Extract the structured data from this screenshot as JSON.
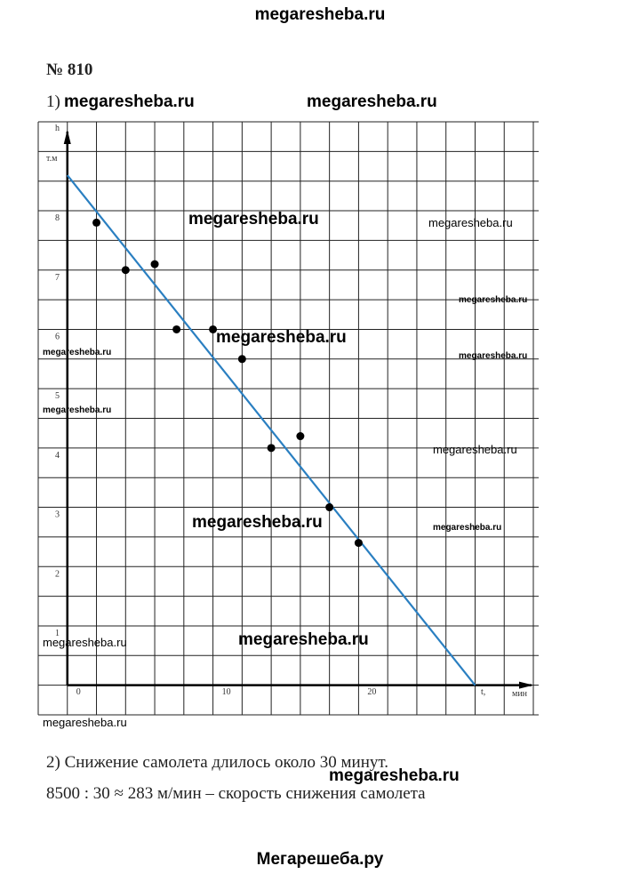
{
  "watermark": "megaresheba.ru",
  "header": {
    "problem": "№ 810",
    "part1": "1)"
  },
  "answer": [
    "2) Снижение самолета длилось около 30 минут.",
    "8500 : 30 ≈ 283 м/мин – скорость снижения самолета"
  ],
  "footer": "Мегарешеба.ру",
  "chart_data": {
    "type": "scatter",
    "y_label": "h",
    "y_unit": "т.м",
    "x_label": "t,",
    "x_unit": "мин",
    "points": {
      "x": [
        2,
        4,
        6,
        7.5,
        10,
        12,
        14,
        16,
        18,
        20
      ],
      "y": [
        7.8,
        7.0,
        7.1,
        6.0,
        6.0,
        5.5,
        4.0,
        4.2,
        3.0,
        2.4
      ],
      "color": "#000000"
    },
    "line": {
      "x": [
        0,
        28
      ],
      "y": [
        8.6,
        0
      ],
      "color": "#2a7fc1"
    },
    "xlim": [
      -2,
      32
    ],
    "ylim": [
      -0.5,
      9.5
    ],
    "xticks": [
      0,
      10,
      20
    ],
    "yticks": [
      1,
      2,
      3,
      4,
      5,
      6,
      7,
      8
    ],
    "xgrid": [
      -2,
      0,
      2,
      4,
      6,
      8,
      10,
      12,
      14,
      16,
      18,
      20,
      22,
      24,
      26,
      28,
      30,
      32
    ],
    "ygrid": [
      -0.5,
      0,
      0.5,
      1,
      1.5,
      2,
      2.5,
      3,
      3.5,
      4,
      4.5,
      5,
      5.5,
      6,
      6.5,
      7,
      7.5,
      8,
      8.5,
      9,
      9.5
    ],
    "grid": true
  }
}
